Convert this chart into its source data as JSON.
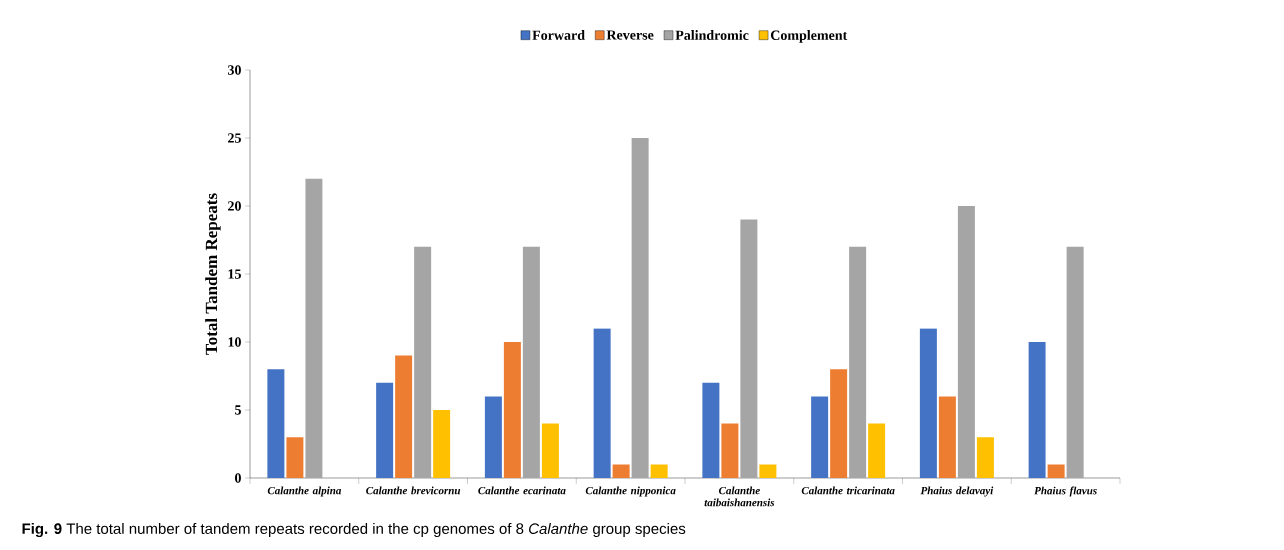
{
  "chart_data": {
    "type": "bar",
    "ylabel": "Total Tandem Repeats",
    "categories": [
      "Calanthe alpina",
      "Calanthe brevicornu",
      "Calanthe ecarinata",
      "Calanthe nipponica",
      "Calanthe taibaishanensis",
      "Calanthe tricarinata",
      "Phaius delavayi",
      "Phaius flavus"
    ],
    "series": [
      {
        "name": "Forward",
        "color": "#4472c4",
        "values": [
          8,
          7,
          6,
          11,
          7,
          6,
          11,
          10
        ]
      },
      {
        "name": "Reverse",
        "color": "#ed7d31",
        "values": [
          3,
          9,
          10,
          1,
          4,
          8,
          6,
          1
        ]
      },
      {
        "name": "Palindromic",
        "color": "#a5a5a5",
        "values": [
          22,
          17,
          17,
          25,
          19,
          17,
          20,
          17
        ]
      },
      {
        "name": "Complement",
        "color": "#ffc000",
        "values": [
          0,
          5,
          4,
          1,
          1,
          4,
          3,
          0
        ]
      }
    ],
    "ylim": [
      0,
      30
    ],
    "yticks": [
      0,
      5,
      10,
      15,
      20,
      25,
      30
    ],
    "legend": "top",
    "annotations": [
      "**Fig. 9** The total number of tandem repeats recorded in the cp genomes of 8 *Calanthe* group species"
    ]
  }
}
